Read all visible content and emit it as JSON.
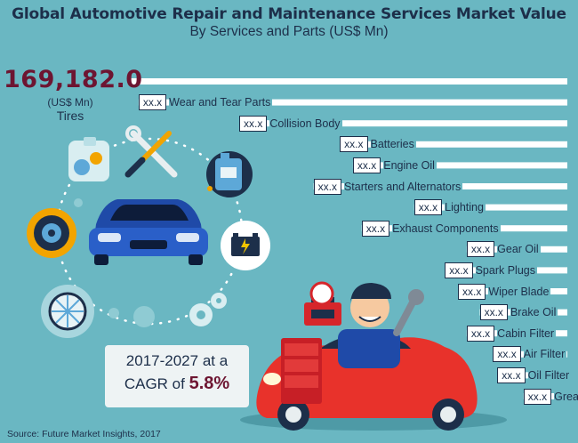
{
  "chart_data": {
    "type": "bar",
    "orientation": "horizontal",
    "title": "Global Automotive Repair and Maintenance Services Market Value",
    "subtitle": "By Services and Parts (US$ Mn)",
    "lead": {
      "value": "169,182.0",
      "unit": "(US$ Mn)",
      "category": "Tires"
    },
    "value_placeholder": "xx.x",
    "categories": [
      "Tires",
      "Wear and Tear Parts",
      "Collision Body",
      "Batteries",
      "Engine Oil",
      "Starters and Alternators",
      "Lighting",
      "Exhaust Components",
      "Gear Oil",
      "Spark Plugs",
      "Wiper Blade",
      "Brake Oil",
      "Cabin Filter",
      "Air Filter",
      "Oil Filter",
      "Grease"
    ],
    "relative_length": [
      1.0,
      0.98,
      0.75,
      0.52,
      0.49,
      0.58,
      0.35,
      0.47,
      0.23,
      0.28,
      0.25,
      0.2,
      0.23,
      0.17,
      0.16,
      0.1
    ],
    "colors": {
      "bar": "#ffffff",
      "background": "#6ab7c2",
      "accent": "#6d1531"
    }
  },
  "cagr": {
    "line1": "2017-2027 at a",
    "prefix": "CAGR of ",
    "value": "5.8%"
  },
  "source": "Source: Future Market Insights, 2017",
  "icons": [
    "service-gears-icon",
    "wrench-screwdriver-icon",
    "oil-can-icon",
    "car-icon",
    "battery-icon",
    "brake-disc-icon",
    "wheel-icon",
    "gears-icon",
    "mechanic-illustration",
    "red-car-illustration",
    "toolbox-icon"
  ]
}
